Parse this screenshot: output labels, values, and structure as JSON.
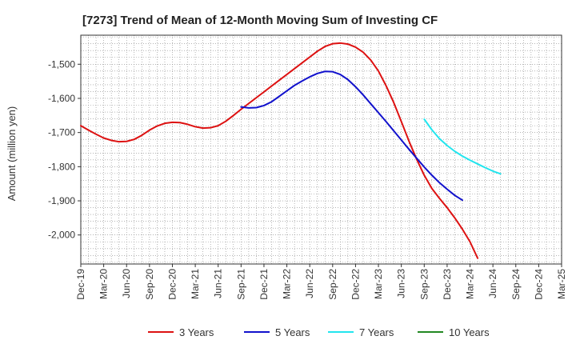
{
  "chart_data": {
    "type": "line",
    "title": "[7273]  Trend of Mean of 12-Month Moving Sum of Investing CF",
    "xlabel": "",
    "ylabel": "Amount (million yen)",
    "x_ticks": [
      "Dec-19",
      "Mar-20",
      "Jun-20",
      "Sep-20",
      "Dec-20",
      "Mar-21",
      "Jun-21",
      "Sep-21",
      "Dec-21",
      "Mar-22",
      "Jun-22",
      "Sep-22",
      "Dec-22",
      "Mar-23",
      "Jun-23",
      "Sep-23",
      "Dec-23",
      "Mar-24",
      "Jun-24",
      "Sep-24",
      "Dec-24",
      "Mar-25"
    ],
    "y_ticks": [
      -1500,
      -1600,
      -1700,
      -1800,
      -1900,
      -2000
    ],
    "y_tick_labels": [
      "-1,500",
      "-1,600",
      "-1,700",
      "-1,800",
      "-1,900",
      "-2,000"
    ],
    "ylim": [
      -2085,
      -1415
    ],
    "grid": true,
    "legend_position": "bottom",
    "series": [
      {
        "name": "3 Years",
        "color": "#dd1111",
        "points": [
          [
            "Dec-19",
            -1680
          ],
          [
            "Jan-20",
            -1693
          ],
          [
            "Feb-20",
            -1705
          ],
          [
            "Mar-20",
            -1716
          ],
          [
            "Apr-20",
            -1723
          ],
          [
            "May-20",
            -1727
          ],
          [
            "Jun-20",
            -1726
          ],
          [
            "Jul-20",
            -1720
          ],
          [
            "Aug-20",
            -1708
          ],
          [
            "Sep-20",
            -1693
          ],
          [
            "Oct-20",
            -1681
          ],
          [
            "Nov-20",
            -1673
          ],
          [
            "Dec-20",
            -1670
          ],
          [
            "Jan-21",
            -1671
          ],
          [
            "Feb-21",
            -1676
          ],
          [
            "Mar-21",
            -1683
          ],
          [
            "Apr-21",
            -1687
          ],
          [
            "May-21",
            -1686
          ],
          [
            "Jun-21",
            -1680
          ],
          [
            "Jul-21",
            -1667
          ],
          [
            "Aug-21",
            -1650
          ],
          [
            "Sep-21",
            -1632
          ],
          [
            "Oct-21",
            -1615
          ],
          [
            "Nov-21",
            -1598
          ],
          [
            "Dec-21",
            -1581
          ],
          [
            "Jan-22",
            -1564
          ],
          [
            "Feb-22",
            -1547
          ],
          [
            "Mar-22",
            -1530
          ],
          [
            "Apr-22",
            -1513
          ],
          [
            "May-22",
            -1496
          ],
          [
            "Jun-22",
            -1479
          ],
          [
            "Jul-22",
            -1462
          ],
          [
            "Aug-22",
            -1448
          ],
          [
            "Sep-22",
            -1440
          ],
          [
            "Oct-22",
            -1438
          ],
          [
            "Nov-22",
            -1441
          ],
          [
            "Dec-22",
            -1450
          ],
          [
            "Jan-23",
            -1465
          ],
          [
            "Feb-23",
            -1488
          ],
          [
            "Mar-23",
            -1520
          ],
          [
            "Apr-23",
            -1563
          ],
          [
            "May-23",
            -1612
          ],
          [
            "Jun-23",
            -1668
          ],
          [
            "Jul-23",
            -1725
          ],
          [
            "Aug-23",
            -1778
          ],
          [
            "Sep-23",
            -1825
          ],
          [
            "Oct-23",
            -1864
          ],
          [
            "Nov-23",
            -1893
          ],
          [
            "Dec-23",
            -1920
          ],
          [
            "Jan-24",
            -1950
          ],
          [
            "Feb-24",
            -1983
          ],
          [
            "Mar-24",
            -2020
          ],
          [
            "Apr-24",
            -2068
          ]
        ]
      },
      {
        "name": "5 Years",
        "color": "#1111cc",
        "points": [
          [
            "Sep-21",
            -1625
          ],
          [
            "Oct-21",
            -1628
          ],
          [
            "Nov-21",
            -1627
          ],
          [
            "Dec-21",
            -1621
          ],
          [
            "Jan-22",
            -1610
          ],
          [
            "Feb-22",
            -1594
          ],
          [
            "Mar-22",
            -1578
          ],
          [
            "Apr-22",
            -1562
          ],
          [
            "May-22",
            -1549
          ],
          [
            "Jun-22",
            -1537
          ],
          [
            "Jul-22",
            -1527
          ],
          [
            "Aug-22",
            -1521
          ],
          [
            "Sep-22",
            -1522
          ],
          [
            "Oct-22",
            -1530
          ],
          [
            "Nov-22",
            -1545
          ],
          [
            "Dec-22",
            -1566
          ],
          [
            "Jan-23",
            -1590
          ],
          [
            "Feb-23",
            -1616
          ],
          [
            "Mar-23",
            -1642
          ],
          [
            "Apr-23",
            -1668
          ],
          [
            "May-23",
            -1695
          ],
          [
            "Jun-23",
            -1722
          ],
          [
            "Jul-23",
            -1749
          ],
          [
            "Aug-23",
            -1775
          ],
          [
            "Sep-23",
            -1801
          ],
          [
            "Oct-23",
            -1825
          ],
          [
            "Nov-23",
            -1847
          ],
          [
            "Dec-23",
            -1866
          ],
          [
            "Jan-24",
            -1884
          ],
          [
            "Feb-24",
            -1898
          ]
        ]
      },
      {
        "name": "7 Years",
        "color": "#22e5ee",
        "points": [
          [
            "Sep-23",
            -1661
          ],
          [
            "Oct-23",
            -1692
          ],
          [
            "Nov-23",
            -1718
          ],
          [
            "Dec-23",
            -1738
          ],
          [
            "Jan-24",
            -1755
          ],
          [
            "Feb-24",
            -1769
          ],
          [
            "Mar-24",
            -1781
          ],
          [
            "Apr-24",
            -1792
          ],
          [
            "May-24",
            -1803
          ],
          [
            "Jun-24",
            -1813
          ],
          [
            "Jul-24",
            -1821
          ]
        ]
      },
      {
        "name": "10 Years",
        "color": "#228822",
        "points": []
      }
    ]
  }
}
